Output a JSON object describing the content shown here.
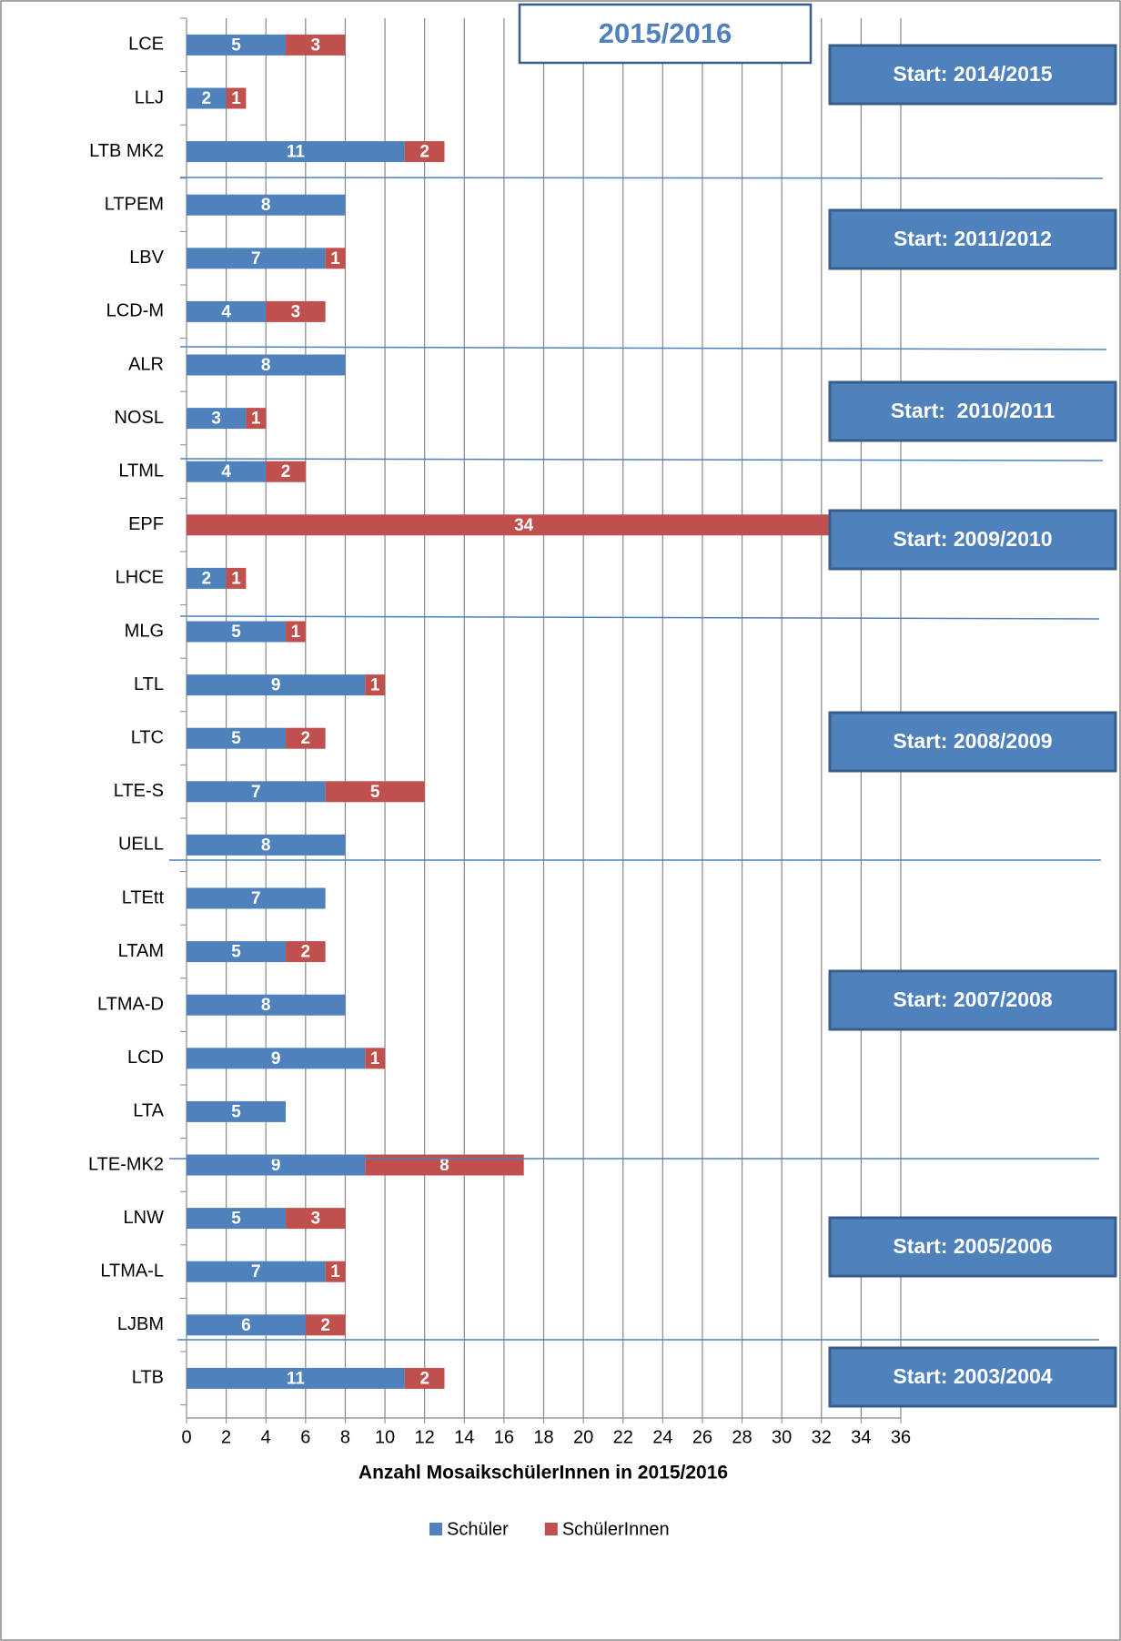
{
  "chart_data": {
    "type": "bar",
    "orientation": "horizontal",
    "stacked": true,
    "title": "2015/2016",
    "xlabel": "Anzahl MosaikschülerInnen in 2015/2016",
    "categories": [
      "LCE",
      "LLJ",
      "LTB MK2",
      "LTPEM",
      "LBV",
      "LCD-M",
      "ALR",
      "NOSL",
      "LTML",
      "EPF",
      "LHCE",
      "MLG",
      "LTL",
      "LTC",
      "LTE-S",
      "UELL",
      "LTEtt",
      "LTAM",
      "LTMA-D",
      "LCD",
      "LTA",
      "LTE-MK2",
      "LNW",
      "LTMA-L",
      "LJBM",
      "LTB"
    ],
    "series": [
      {
        "name": "Schüler",
        "color": "#4f81bd",
        "values": [
          5,
          2,
          11,
          8,
          7,
          4,
          8,
          3,
          4,
          null,
          2,
          5,
          9,
          5,
          7,
          8,
          7,
          5,
          8,
          9,
          5,
          9,
          5,
          7,
          6,
          11
        ]
      },
      {
        "name": "SchülerInnen",
        "color": "#c0504d",
        "values": [
          3,
          1,
          2,
          null,
          1,
          3,
          null,
          1,
          2,
          34,
          1,
          1,
          1,
          2,
          5,
          null,
          null,
          2,
          null,
          1,
          null,
          8,
          3,
          1,
          2,
          2
        ]
      }
    ],
    "xlim": [
      0,
      36
    ],
    "xticks": [
      0,
      2,
      4,
      6,
      8,
      10,
      12,
      14,
      16,
      18,
      20,
      22,
      24,
      26,
      28,
      30,
      32,
      34,
      36
    ],
    "grid": true,
    "legend": "bottom",
    "annotations": [
      "Start: 2014/2015",
      "Start: 2011/2012",
      "Start:  2010/2011",
      "Start: 2009/2010",
      "Start: 2008/2009",
      "Start: 2007/2008",
      "Start: 2005/2006",
      "Start: 2003/2004"
    ]
  }
}
